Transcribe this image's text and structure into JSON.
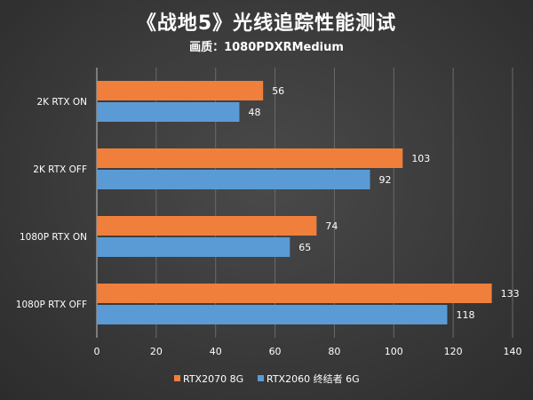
{
  "chart_data": {
    "type": "bar",
    "orientation": "horizontal",
    "title": "《战地5》光线追踪性能测试",
    "subtitle": "画质：1080PDXRMedium",
    "categories": [
      "2K RTX ON",
      "2K RTX OFF",
      "1080P RTX ON",
      "1080P RTX OFF"
    ],
    "series": [
      {
        "name": "RTX2070 8G",
        "color": "#f07f3c",
        "values": [
          56,
          103,
          74,
          133
        ]
      },
      {
        "name": "RTX2060 终结者 6G",
        "color": "#5b9bd5",
        "values": [
          48,
          92,
          65,
          118
        ]
      }
    ],
    "xlim": [
      0,
      140
    ],
    "xticks": [
      0,
      20,
      40,
      60,
      80,
      100,
      120,
      140
    ],
    "grid": true,
    "legend": "bottom"
  }
}
